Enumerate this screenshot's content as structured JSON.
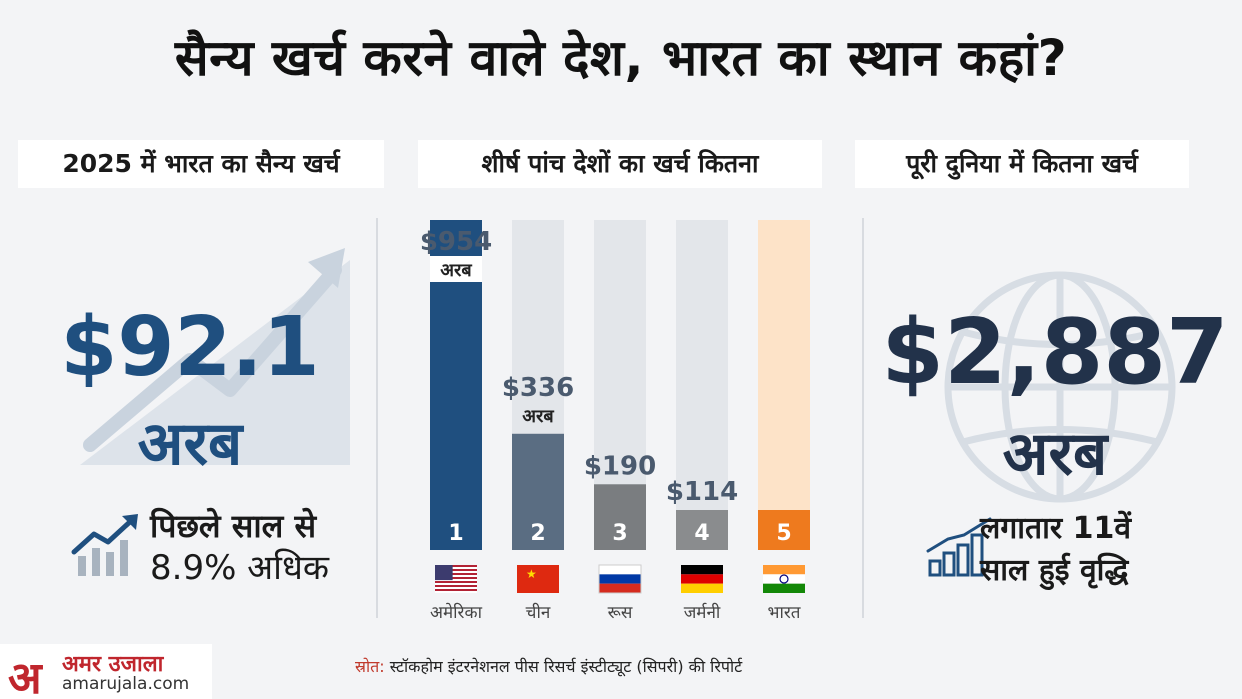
{
  "title": "सैन्य खर्च करने वाले देश, भारत का स्थान कहां?",
  "sections": {
    "india": {
      "heading": "2025 में भारत का सैन्य खर्च",
      "value": "$92.1",
      "unit": "अरब",
      "growth_line1": "पिछले साल से",
      "growth_line2": "8.9% अधिक"
    },
    "top5": {
      "heading": "शीर्ष पांच देशों का खर्च कितना"
    },
    "world": {
      "heading": "पूरी दुनिया में कितना खर्च",
      "value": "$2,887",
      "unit": "अरब",
      "growth_line1": "लगातार 11वें",
      "growth_line2": "साल हुई वृद्धि"
    }
  },
  "chart_data": {
    "type": "bar",
    "categories": [
      "अमेरिका",
      "चीन",
      "रूस",
      "जर्मनी",
      "भारत"
    ],
    "ranks": [
      "1",
      "2",
      "3",
      "4",
      "5"
    ],
    "values": [
      954,
      336,
      190,
      114,
      92.1
    ],
    "value_labels": [
      "$954",
      "$336",
      "$190",
      "$114",
      ""
    ],
    "unit_labels": [
      "अरब",
      "अरब",
      "",
      "",
      ""
    ],
    "unit": "अरब डॉलर",
    "ylim": [
      0,
      954
    ],
    "colors": {
      "filled": [
        "#1f4f7f",
        "#5a6d82",
        "#7a7d80",
        "#8a8c8e",
        "#ee7a1e"
      ],
      "track": [
        "#e3e6ea",
        "#e3e6ea",
        "#e3e6ea",
        "#e3e6ea",
        "#fde3c8"
      ]
    },
    "flags": [
      "us-flag-icon",
      "china-flag-icon",
      "russia-flag-icon",
      "germany-flag-icon",
      "india-flag-icon"
    ]
  },
  "source": {
    "label": "स्रोत:",
    "text": "स्टॉकहोम इंटरनेशनल पीस रिसर्च इंस्टीट्यूट (सिपरी) की रिपोर्ट"
  },
  "logo": {
    "mark": "अ",
    "name": "अमर उजाला",
    "url": "amarujala.com"
  }
}
